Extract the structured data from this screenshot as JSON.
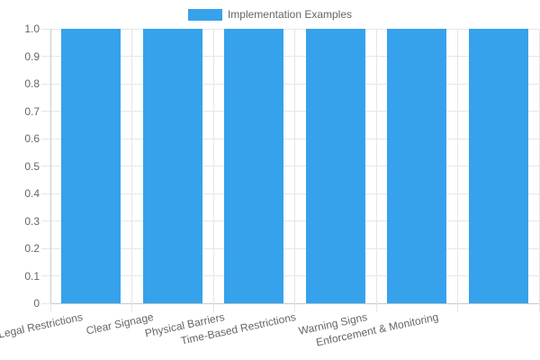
{
  "legend": {
    "label": "Implementation Examples"
  },
  "colors": {
    "bar": "#36a2eb",
    "grid": "#e6e6e6",
    "axis_line": "#c9c9c9",
    "text": "#666666",
    "background": "#ffffff"
  },
  "chart_data": {
    "type": "bar",
    "title": "",
    "xlabel": "",
    "ylabel": "",
    "categories": [
      "Legal Restrictions",
      "Clear Signage",
      "Physical Barriers",
      "Time-Based Restrictions",
      "Warning Signs",
      "Enforcement & Monitoring"
    ],
    "series": [
      {
        "name": "Implementation Examples",
        "color": "#36a2eb",
        "values": [
          1.0,
          1.0,
          1.0,
          1.0,
          1.0,
          1.0
        ]
      }
    ],
    "ylim": [
      0,
      1.0
    ],
    "yticks": [
      0,
      0.1,
      0.2,
      0.3,
      0.4,
      0.5,
      0.6,
      0.7,
      0.8,
      0.9,
      1.0
    ],
    "ytick_labels": [
      "0",
      "0.1",
      "0.2",
      "0.3",
      "0.4",
      "0.5",
      "0.6",
      "0.7",
      "0.8",
      "0.9",
      "1.0"
    ],
    "grid": true,
    "legend_position": "top-center",
    "x_tick_rotation_deg": -12
  }
}
